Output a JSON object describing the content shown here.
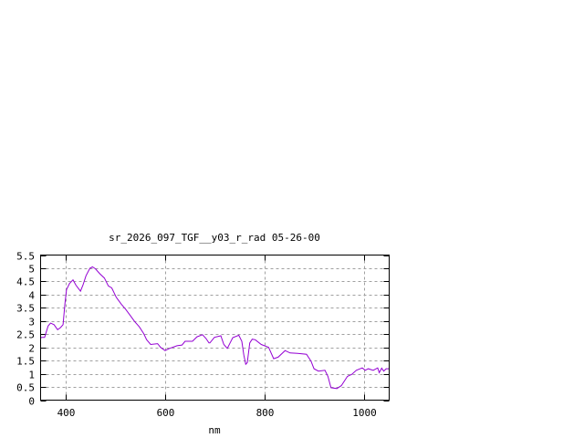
{
  "chart_data": {
    "type": "line",
    "title": "sr_2026_097_TGF__y03_r_rad 05-26-00",
    "xlabel": "nm",
    "ylabel": "",
    "xlim": [
      350,
      1050
    ],
    "ylim": [
      0,
      5.5
    ],
    "xticks": [
      400,
      600,
      800,
      1000
    ],
    "yticks": [
      0,
      0.5,
      1,
      1.5,
      2,
      2.5,
      3,
      3.5,
      4,
      4.5,
      5,
      5.5
    ],
    "ytick_labels": [
      "0",
      "0.5",
      "1",
      "1.5",
      "2",
      "2.5",
      "3",
      "3.5",
      "4",
      "4.5",
      "5",
      "5.5"
    ],
    "grid": true,
    "line_color": "#9400d3",
    "series": [
      {
        "x": [
          350,
          352,
          358,
          365,
          370,
          377,
          384,
          390,
          395,
          399,
          402,
          408,
          415,
          421,
          430,
          435,
          441,
          449,
          454,
          460,
          469,
          478,
          486,
          493,
          502,
          512,
          521,
          530,
          539,
          548,
          557,
          563,
          571,
          585,
          591,
          600,
          609,
          624,
          634,
          640,
          655,
          664,
          675,
          682,
          688,
          690,
          699,
          712,
          718,
          725,
          736,
          748,
          754,
          758,
          762,
          765,
          770,
          775,
          781,
          793,
          808,
          818,
          827,
          841,
          851,
          866,
          884,
          893,
          899,
          908,
          921,
          927,
          933,
          945,
          954,
          966,
          975,
          984,
          996,
          1002,
          1008,
          1018,
          1027,
          1030,
          1035,
          1039,
          1044,
          1050
        ],
        "y": [
          2.35,
          2.38,
          2.38,
          2.81,
          2.92,
          2.86,
          2.67,
          2.75,
          2.86,
          3.67,
          4.19,
          4.42,
          4.56,
          4.36,
          4.13,
          4.36,
          4.71,
          5.0,
          5.05,
          4.98,
          4.79,
          4.63,
          4.33,
          4.25,
          3.9,
          3.64,
          3.44,
          3.21,
          2.98,
          2.78,
          2.52,
          2.29,
          2.11,
          2.14,
          2.0,
          1.88,
          1.96,
          2.06,
          2.09,
          2.23,
          2.23,
          2.4,
          2.48,
          2.34,
          2.17,
          2.17,
          2.38,
          2.44,
          2.11,
          1.96,
          2.37,
          2.46,
          2.23,
          1.71,
          1.36,
          1.42,
          2.17,
          2.31,
          2.29,
          2.11,
          2.0,
          1.57,
          1.63,
          1.88,
          1.79,
          1.77,
          1.74,
          1.48,
          1.19,
          1.1,
          1.13,
          0.9,
          0.47,
          0.44,
          0.55,
          0.9,
          0.98,
          1.13,
          1.22,
          1.13,
          1.19,
          1.13,
          1.22,
          1.04,
          1.21,
          1.1,
          1.19,
          1.19
        ]
      }
    ]
  }
}
